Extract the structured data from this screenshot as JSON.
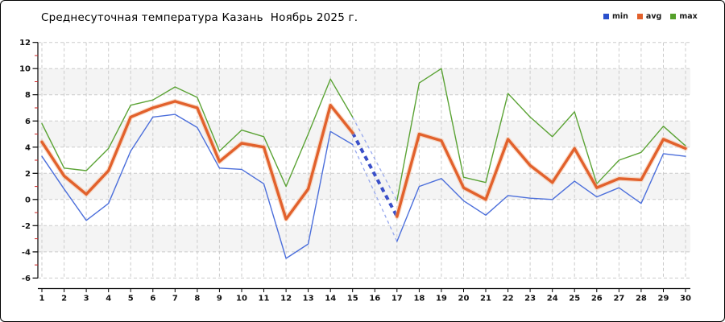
{
  "chart_data": {
    "type": "line",
    "title": "Среднесуточная температура Казань  Ноябрь 2025 г.",
    "xlabel": "",
    "ylabel": "",
    "x": [
      1,
      2,
      3,
      4,
      5,
      6,
      7,
      8,
      9,
      10,
      11,
      12,
      13,
      14,
      15,
      16,
      17,
      18,
      19,
      20,
      21,
      22,
      23,
      24,
      25,
      26,
      27,
      28,
      29,
      30
    ],
    "ylim": [
      -6,
      12
    ],
    "yticks": [
      12,
      10,
      8,
      6,
      4,
      2,
      0,
      -2,
      -4,
      -6
    ],
    "grid": true,
    "legend": {
      "position": "top-right",
      "items": [
        {
          "label": "min",
          "color": "#2a50cc"
        },
        {
          "label": "avg",
          "color": "#e2612c"
        },
        {
          "label": "max",
          "color": "#55a02a"
        }
      ]
    },
    "series": [
      {
        "name": "min",
        "color": "#4c6fdb",
        "width": 1.4,
        "values": [
          3.3,
          0.8,
          -1.6,
          -0.3,
          3.7,
          6.3,
          6.5,
          5.5,
          2.4,
          2.3,
          1.2,
          -4.5,
          -3.4,
          5.2,
          4.2,
          null,
          -3.2,
          1.0,
          1.6,
          -0.1,
          -1.2,
          0.3,
          0.1,
          0.0,
          1.4,
          0.2,
          0.9,
          -0.3,
          3.5,
          3.3
        ]
      },
      {
        "name": "avg",
        "color": "#e2612c",
        "halo": "#f4b793",
        "width": 3.4,
        "values": [
          4.4,
          1.8,
          0.4,
          2.2,
          6.3,
          7.0,
          7.5,
          7.0,
          2.9,
          4.3,
          4.0,
          -1.5,
          0.8,
          7.2,
          5.1,
          null,
          -1.3,
          5.0,
          4.5,
          0.9,
          0.0,
          4.6,
          2.6,
          1.3,
          3.9,
          0.9,
          1.6,
          1.5,
          4.6,
          3.9
        ]
      },
      {
        "name": "max",
        "color": "#5ba335",
        "width": 1.4,
        "values": [
          5.8,
          2.4,
          2.2,
          3.9,
          7.2,
          7.6,
          8.6,
          7.8,
          3.7,
          5.3,
          4.8,
          1.0,
          5.0,
          9.2,
          6.3,
          null,
          -0.1,
          8.9,
          10.0,
          1.7,
          1.3,
          8.1,
          6.3,
          4.8,
          6.7,
          1.2,
          3.0,
          3.6,
          5.6,
          4.1
        ]
      }
    ],
    "gap": {
      "from_day": 15,
      "to_day": 17,
      "note": "day 16 has no data; interpolated with dashed blue lines",
      "styles": {
        "min": {
          "color": "#97a8ee",
          "width": 1.3,
          "dash": "4 4"
        },
        "avg": {
          "color": "#3a4fc8",
          "width": 4,
          "dash": "6 5"
        },
        "max": {
          "color": "#97a8ee",
          "width": 1.3,
          "dash": "4 4"
        }
      }
    },
    "style": {
      "band_color": "#f4f4f4",
      "bands": [
        [
          10,
          8
        ],
        [
          6,
          4
        ],
        [
          2,
          0
        ],
        [
          -2,
          -4
        ]
      ],
      "grid_color": "#cbcbcb",
      "axis_color": "#000000",
      "minor_tick_color": "#cc2222",
      "tick_label_color": "#111111"
    }
  }
}
